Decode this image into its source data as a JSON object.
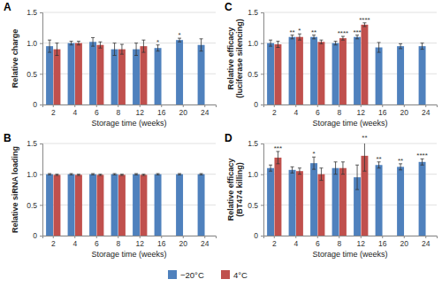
{
  "chart_data": [
    {
      "type": "bar",
      "title": "A",
      "x_label": "Storage time (weeks)",
      "y_label": "Relative charge",
      "categories": [
        "2",
        "4",
        "6",
        "8",
        "12",
        "16",
        "20",
        "24"
      ],
      "ylim": [
        0,
        1.5
      ],
      "yticks": [
        0,
        0.5,
        {
          "value": 1,
          "label": "1.0"
        },
        1.5
      ],
      "grid": true,
      "legend": "bottom",
      "series": [
        {
          "name": "−20°C",
          "color": "#4f81bd",
          "values": [
            0.95,
            1.0,
            1.02,
            0.9,
            0.9,
            0.92,
            1.05,
            0.97
          ],
          "errors": [
            0.1,
            0.03,
            0.07,
            0.1,
            0.1,
            0.05,
            0.03,
            0.1
          ],
          "annotations": [
            null,
            null,
            null,
            null,
            null,
            "*",
            "*",
            null
          ]
        },
        {
          "name": "4°C",
          "color": "#c0504d",
          "values": [
            0.9,
            1.0,
            0.97,
            0.9,
            0.95,
            null,
            null,
            null
          ],
          "errors": [
            0.1,
            0.03,
            0.05,
            0.08,
            0.1,
            null,
            null,
            null
          ],
          "annotations": [
            null,
            null,
            null,
            null,
            null,
            null,
            null,
            null
          ]
        }
      ]
    },
    {
      "type": "bar",
      "title": "B",
      "x_label": "Storage time (weeks)",
      "y_label": "Relative siRNA loading",
      "categories": [
        "2",
        "4",
        "6",
        "8",
        "12",
        "16",
        "20",
        "24"
      ],
      "ylim": [
        0,
        1.5
      ],
      "yticks": [
        0,
        0.5,
        {
          "value": 1,
          "label": "1.0"
        },
        1.5
      ],
      "grid": true,
      "series": [
        {
          "color": "#4f81bd",
          "values": [
            1.0,
            1.0,
            1.0,
            1.0,
            1.0,
            1.0,
            1.0,
            1.0
          ],
          "errors": [
            0.01,
            0.01,
            0.01,
            0.01,
            0.01,
            0.01,
            0.01,
            0.01
          ],
          "annotations": [
            null,
            null,
            null,
            null,
            null,
            null,
            null,
            null
          ]
        },
        {
          "color": "#c0504d",
          "values": [
            0.99,
            0.99,
            0.99,
            0.99,
            0.99,
            null,
            null,
            null
          ],
          "errors": [
            0.01,
            0.01,
            0.01,
            0.01,
            0.01,
            null,
            null,
            null
          ],
          "annotations": [
            null,
            null,
            null,
            null,
            null,
            null,
            null,
            null
          ]
        }
      ]
    },
    {
      "type": "bar",
      "title": "C",
      "x_label": "Storage time (weeks)",
      "y_label": "Relative efficacy (luciferase silencing)",
      "categories": [
        "2",
        "4",
        "6",
        "8",
        "12",
        "16",
        "20",
        "24"
      ],
      "ylim": [
        0,
        1.5
      ],
      "yticks": [
        0,
        0.5,
        {
          "value": 1,
          "label": "1.0"
        },
        1.5
      ],
      "grid": true,
      "series": [
        {
          "color": "#4f81bd",
          "values": [
            1.0,
            1.1,
            1.1,
            1.0,
            1.1,
            0.93,
            0.95,
            0.95
          ],
          "errors": [
            0.05,
            0.03,
            0.03,
            0.03,
            0.03,
            0.08,
            0.04,
            0.05
          ],
          "annotations": [
            null,
            "**",
            "**",
            null,
            "***",
            null,
            null,
            null
          ]
        },
        {
          "color": "#c0504d",
          "values": [
            0.98,
            1.1,
            1.02,
            1.08,
            1.3,
            null,
            null,
            null
          ],
          "errors": [
            0.05,
            0.05,
            0.03,
            0.03,
            0.03,
            null,
            null,
            null
          ],
          "annotations": [
            null,
            "*",
            null,
            "****",
            "****",
            null,
            null,
            null
          ]
        }
      ]
    },
    {
      "type": "bar",
      "title": "D",
      "x_label": "Storage time (weeks)",
      "y_label": "Relative efficacy (BT474 killing)",
      "categories": [
        "2",
        "4",
        "6",
        "8",
        "12",
        "16",
        "20",
        "24"
      ],
      "ylim": [
        0,
        1.5
      ],
      "yticks": [
        0,
        0.5,
        {
          "value": 1,
          "label": "1.0"
        },
        1.5
      ],
      "grid": true,
      "series": [
        {
          "color": "#4f81bd",
          "values": [
            1.1,
            1.07,
            1.18,
            1.1,
            0.95,
            1.15,
            1.12,
            1.2
          ],
          "errors": [
            0.05,
            0.05,
            0.1,
            0.1,
            0.2,
            0.05,
            0.05,
            0.05
          ],
          "annotations": [
            null,
            null,
            "*",
            null,
            null,
            "**",
            "**",
            "****"
          ]
        },
        {
          "color": "#c0504d",
          "values": [
            1.27,
            1.05,
            1.0,
            1.1,
            1.3,
            null,
            null,
            null
          ],
          "errors": [
            0.1,
            0.05,
            0.1,
            0.1,
            0.25,
            null,
            null,
            null
          ],
          "annotations": [
            "***",
            null,
            null,
            null,
            "**",
            null,
            null,
            null
          ]
        }
      ]
    }
  ]
}
